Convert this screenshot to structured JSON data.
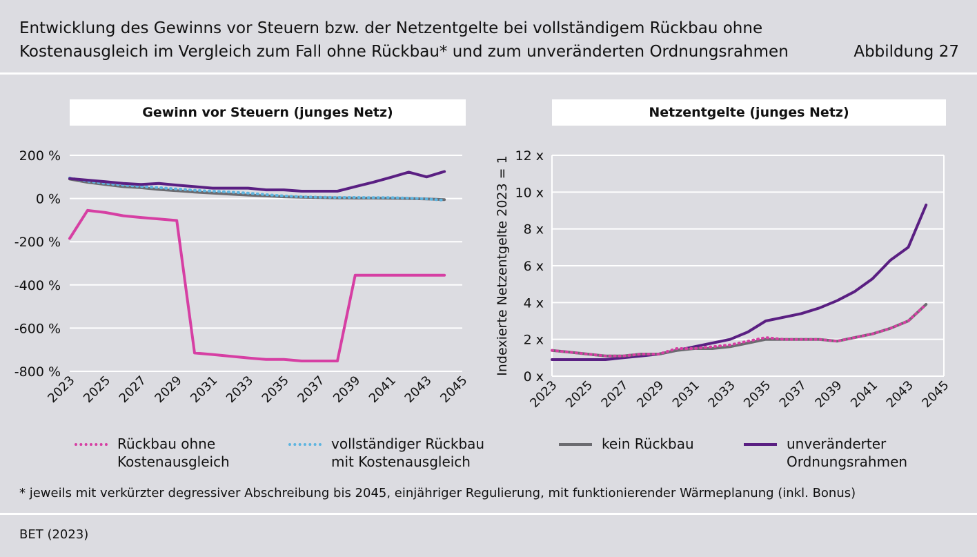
{
  "header": {
    "title": "Entwicklung des Gewinns vor Steuern bzw. der Netzentgelte bei vollständigem Rückbau ohne Kostenausgleich im Vergleich zum Fall ohne Rückbau* und zum unveränderten Ordnungsrahmen",
    "figure_label": "Abbildung 27"
  },
  "footnote": "* jeweils mit verkürzter degressiver Abschreibung bis 2045, einjähriger Regulierung, mit funktionierender Wärmeplanung (inkl. Bonus)",
  "source": "BET (2023)",
  "legend": [
    {
      "label": "Rückbau ohne\nKostenausgleich",
      "color": "#d63fa3",
      "style": "dotted"
    },
    {
      "label": "vollständiger Rückbau\nmit Kostenausgleich",
      "color": "#5fb5e0",
      "style": "dotted"
    },
    {
      "label": "kein Rückbau",
      "color": "#6b6b70",
      "style": "solid"
    },
    {
      "label": "unveränderter\nOrdnungsrahmen",
      "color": "#5a1f82",
      "style": "solid"
    }
  ],
  "chart_data": [
    {
      "type": "line",
      "title": "Gewinn vor Steuern (junges Netz)",
      "xlabel": "",
      "ylabel": "",
      "ylim": [
        -800,
        200
      ],
      "yticks": [
        200,
        0,
        -200,
        -400,
        -600,
        -800
      ],
      "ytick_labels": [
        "200 %",
        "0 %",
        "-200 %",
        "-400 %",
        "-600 %",
        "-800 %"
      ],
      "xlim": [
        2023,
        2045
      ],
      "xticks": [
        "2023",
        "2025",
        "2027",
        "2029",
        "2031",
        "2033",
        "2035",
        "2037",
        "2039",
        "2041",
        "2043",
        "2045"
      ],
      "x": [
        2023,
        2024,
        2025,
        2026,
        2027,
        2028,
        2029,
        2030,
        2031,
        2032,
        2033,
        2034,
        2035,
        2036,
        2037,
        2038,
        2039,
        2040,
        2041,
        2042,
        2043,
        2044
      ],
      "series": [
        {
          "name": "kein Rückbau",
          "color": "#6b6b70",
          "style": "solid",
          "values": [
            90,
            75,
            65,
            55,
            50,
            42,
            36,
            30,
            25,
            20,
            16,
            12,
            8,
            6,
            4,
            3,
            2,
            2,
            1,
            0,
            -2,
            -5
          ]
        },
        {
          "name": "vollständiger Rückbau mit Kostenausgleich",
          "color": "#5fb5e0",
          "style": "dotted",
          "values": [
            95,
            80,
            70,
            62,
            56,
            50,
            44,
            38,
            34,
            30,
            25,
            18,
            12,
            8,
            6,
            5,
            5,
            4,
            4,
            2,
            -2,
            -8
          ]
        },
        {
          "name": "unveränderter Ordnungsrahmen",
          "color": "#5a1f82",
          "style": "solid",
          "values": [
            92,
            85,
            78,
            70,
            65,
            70,
            62,
            55,
            48,
            48,
            48,
            40,
            40,
            34,
            34,
            34,
            55,
            75,
            98,
            122,
            100,
            125
          ]
        },
        {
          "name": "Rückbau ohne Kostenausgleich",
          "color": "#d63fa3",
          "style": "solid",
          "values": [
            -185,
            -55,
            -65,
            -80,
            -88,
            -95,
            -102,
            -715,
            -722,
            -730,
            -738,
            -745,
            -745,
            -752,
            -752,
            -752,
            -355,
            -355,
            -355,
            -355,
            -355,
            -355
          ]
        }
      ]
    },
    {
      "type": "line",
      "title": "Netzentgelte (junges Netz)",
      "xlabel": "",
      "ylabel": "Indexierte Netzentgelte 2023 = 1",
      "ylim": [
        0,
        12
      ],
      "yticks": [
        12,
        10,
        8,
        6,
        4,
        2,
        0
      ],
      "ytick_labels": [
        "12 x",
        "10 x",
        "8 x",
        "6 x",
        "4 x",
        "2 x",
        "0 x"
      ],
      "xlim": [
        2023,
        2045
      ],
      "xticks": [
        "2023",
        "2025",
        "2027",
        "2029",
        "2031",
        "2033",
        "2035",
        "2037",
        "2039",
        "2041",
        "2043",
        "2045"
      ],
      "x": [
        2023,
        2024,
        2025,
        2026,
        2027,
        2028,
        2029,
        2030,
        2031,
        2032,
        2033,
        2034,
        2035,
        2036,
        2037,
        2038,
        2039,
        2040,
        2041,
        2042,
        2043,
        2044
      ],
      "series": [
        {
          "name": "unveränderter Ordnungsrahmen",
          "color": "#5a1f82",
          "style": "solid",
          "values": [
            0.9,
            0.9,
            0.9,
            0.9,
            1.0,
            1.1,
            1.2,
            1.4,
            1.6,
            1.8,
            2.0,
            2.4,
            3.0,
            3.2,
            3.4,
            3.7,
            4.1,
            4.6,
            5.3,
            6.3,
            7.0,
            9.3
          ]
        },
        {
          "name": "kein Rückbau",
          "color": "#6b6b70",
          "style": "solid",
          "values": [
            1.4,
            1.3,
            1.2,
            1.1,
            1.1,
            1.2,
            1.2,
            1.4,
            1.5,
            1.5,
            1.6,
            1.8,
            2.0,
            2.0,
            2.0,
            2.0,
            1.9,
            2.1,
            2.3,
            2.6,
            3.0,
            3.9
          ]
        },
        {
          "name": "Rückbau ohne Kostenausgleich",
          "color": "#d63fa3",
          "style": "dotted",
          "values": [
            1.4,
            1.3,
            1.2,
            1.1,
            1.1,
            1.2,
            1.2,
            1.5,
            1.5,
            1.6,
            1.7,
            1.9,
            2.1,
            2.0,
            2.0,
            2.0,
            1.9,
            2.1,
            2.3,
            2.6,
            3.0,
            3.9
          ]
        }
      ]
    }
  ]
}
